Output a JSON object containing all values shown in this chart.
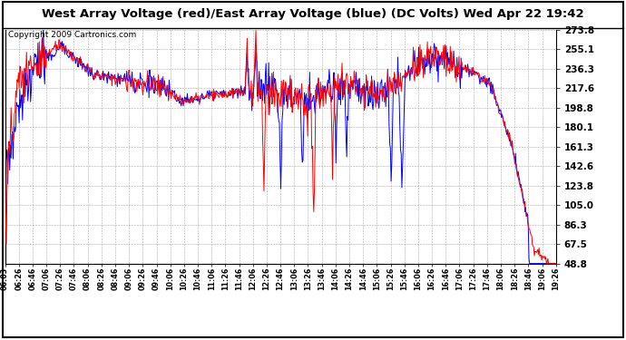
{
  "title": "West Array Voltage (red)/East Array Voltage (blue) (DC Volts) Wed Apr 22 19:42",
  "copyright": "Copyright 2009 Cartronics.com",
  "yticks": [
    273.8,
    255.1,
    236.3,
    217.6,
    198.8,
    180.1,
    161.3,
    142.6,
    123.8,
    105.0,
    86.3,
    67.5,
    48.8
  ],
  "ymin": 48.8,
  "ymax": 273.8,
  "xtick_labels": [
    "06:03",
    "06:26",
    "06:46",
    "07:06",
    "07:26",
    "07:46",
    "08:06",
    "08:26",
    "08:46",
    "09:06",
    "09:26",
    "09:46",
    "10:06",
    "10:26",
    "10:46",
    "11:06",
    "11:26",
    "11:46",
    "12:06",
    "12:26",
    "12:46",
    "13:06",
    "13:26",
    "13:46",
    "14:06",
    "14:26",
    "14:46",
    "15:06",
    "15:26",
    "15:46",
    "16:06",
    "16:26",
    "16:46",
    "17:06",
    "17:26",
    "17:46",
    "18:06",
    "18:26",
    "18:46",
    "19:06",
    "19:26"
  ],
  "red_color": "#FF0000",
  "blue_color": "#0000FF",
  "bg_color": "#FFFFFF",
  "grid_color": "#AAAAAA",
  "title_bg": "#D4D4D4",
  "line_width": 0.7,
  "title_fontsize": 9.5,
  "copyright_fontsize": 6.5,
  "ytick_fontsize": 7.5,
  "xtick_fontsize": 5.8
}
